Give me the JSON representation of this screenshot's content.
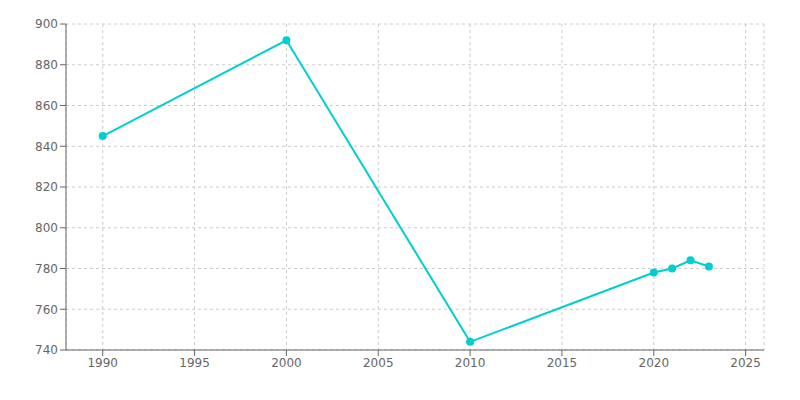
{
  "chart_data": {
    "type": "line",
    "x": [
      1990,
      2000,
      2010,
      2020,
      2021,
      2022,
      2023
    ],
    "values": [
      845,
      892,
      744,
      778,
      780,
      784,
      781
    ],
    "color": "#00CED1",
    "marker": "circle",
    "xlim": [
      1988,
      2026
    ],
    "ylim": [
      740,
      900
    ],
    "xticks": [
      1990,
      1995,
      2000,
      2005,
      2010,
      2015,
      2020,
      2025
    ],
    "yticks": [
      740,
      760,
      780,
      800,
      820,
      840,
      860,
      880,
      900
    ],
    "grid": true
  }
}
